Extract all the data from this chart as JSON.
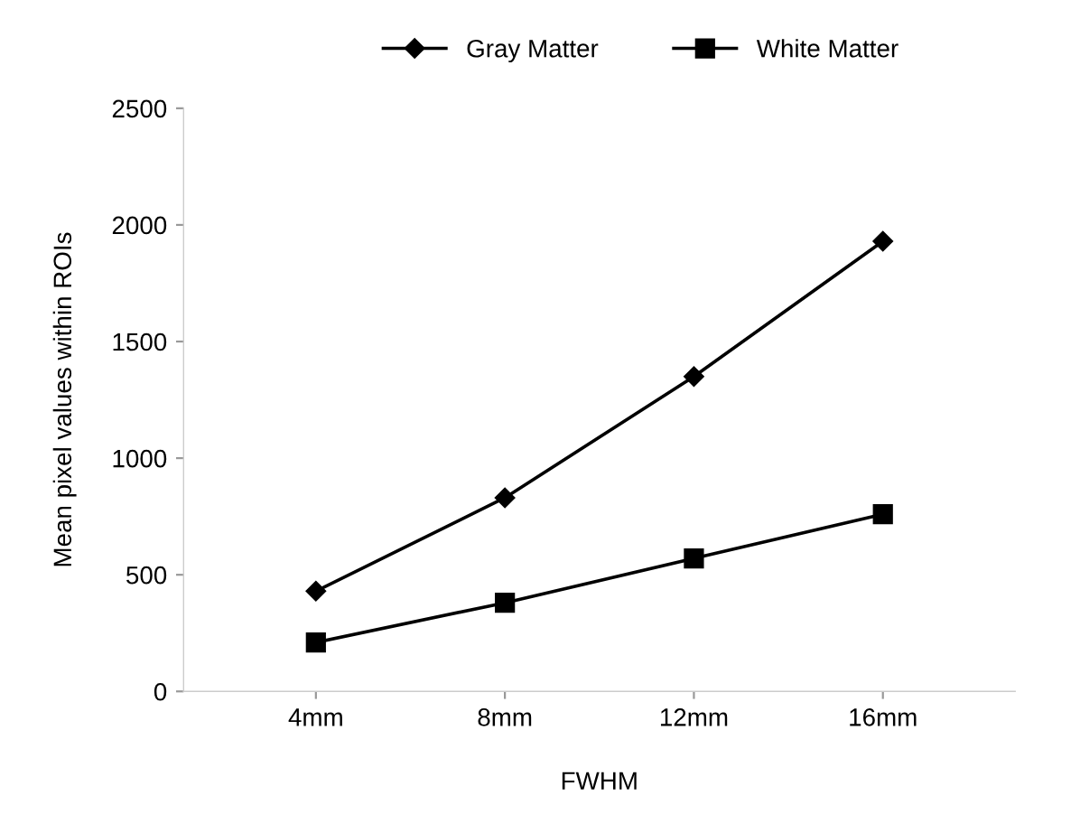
{
  "chart_data": {
    "type": "line",
    "xlabel": "FWHM",
    "ylabel": "Mean pixel values within ROIs",
    "categories": [
      "4mm",
      "8mm",
      "12mm",
      "16mm"
    ],
    "series": [
      {
        "name": "Gray Matter",
        "color": "#000000",
        "marker": "diamond",
        "values": [
          430,
          830,
          1350,
          1930
        ]
      },
      {
        "name": "White Matter",
        "color": "#000000",
        "marker": "square",
        "values": [
          210,
          380,
          570,
          760
        ]
      }
    ],
    "ylim": [
      0,
      2500
    ],
    "yticks": [
      0,
      500,
      1000,
      1500,
      2000,
      2500
    ],
    "grid": false,
    "legend": "top",
    "line_style": "solid"
  }
}
